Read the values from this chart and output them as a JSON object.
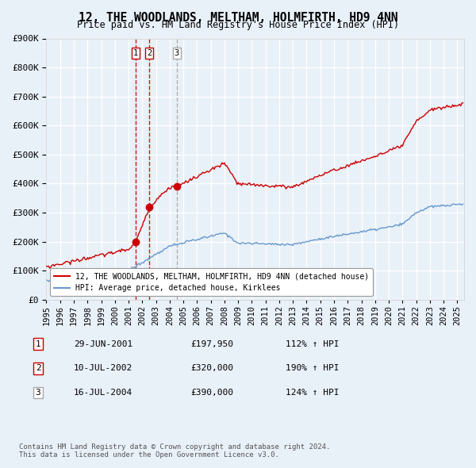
{
  "title": "12, THE WOODLANDS, MELTHAM, HOLMFIRTH, HD9 4NN",
  "subtitle": "Price paid vs. HM Land Registry's House Price Index (HPI)",
  "bg_color": "#e8f0f8",
  "plot_bg_color": "#e8f0f8",
  "red_line_color": "#cc0000",
  "blue_line_color": "#6699cc",
  "grid_color": "#ffffff",
  "transaction_color": "#cc0000",
  "vline_color": "#cc0000",
  "vline3_color": "#aaaaaa",
  "legend_label_red": "12, THE WOODLANDS, MELTHAM, HOLMFIRTH, HD9 4NN (detached house)",
  "legend_label_blue": "HPI: Average price, detached house, Kirklees",
  "transactions": [
    {
      "num": 1,
      "date_num": 2001.49,
      "price": 197950,
      "label": "29-JUN-2001",
      "price_str": "£197,950",
      "pct": "112% ↑ HPI"
    },
    {
      "num": 2,
      "date_num": 2002.52,
      "price": 320000,
      "label": "10-JUL-2002",
      "price_str": "£320,000",
      "pct": "190% ↑ HPI"
    },
    {
      "num": 3,
      "date_num": 2004.52,
      "price": 390000,
      "label": "16-JUL-2004",
      "price_str": "£390,000",
      "pct": "124% ↑ HPI"
    }
  ],
  "footer_text": "Contains HM Land Registry data © Crown copyright and database right 2024.\nThis data is licensed under the Open Government Licence v3.0.",
  "ylim": [
    0,
    900000
  ],
  "yticks": [
    0,
    100000,
    200000,
    300000,
    400000,
    500000,
    600000,
    700000,
    800000,
    900000
  ],
  "xmin": 1995.0,
  "xmax": 2025.5
}
